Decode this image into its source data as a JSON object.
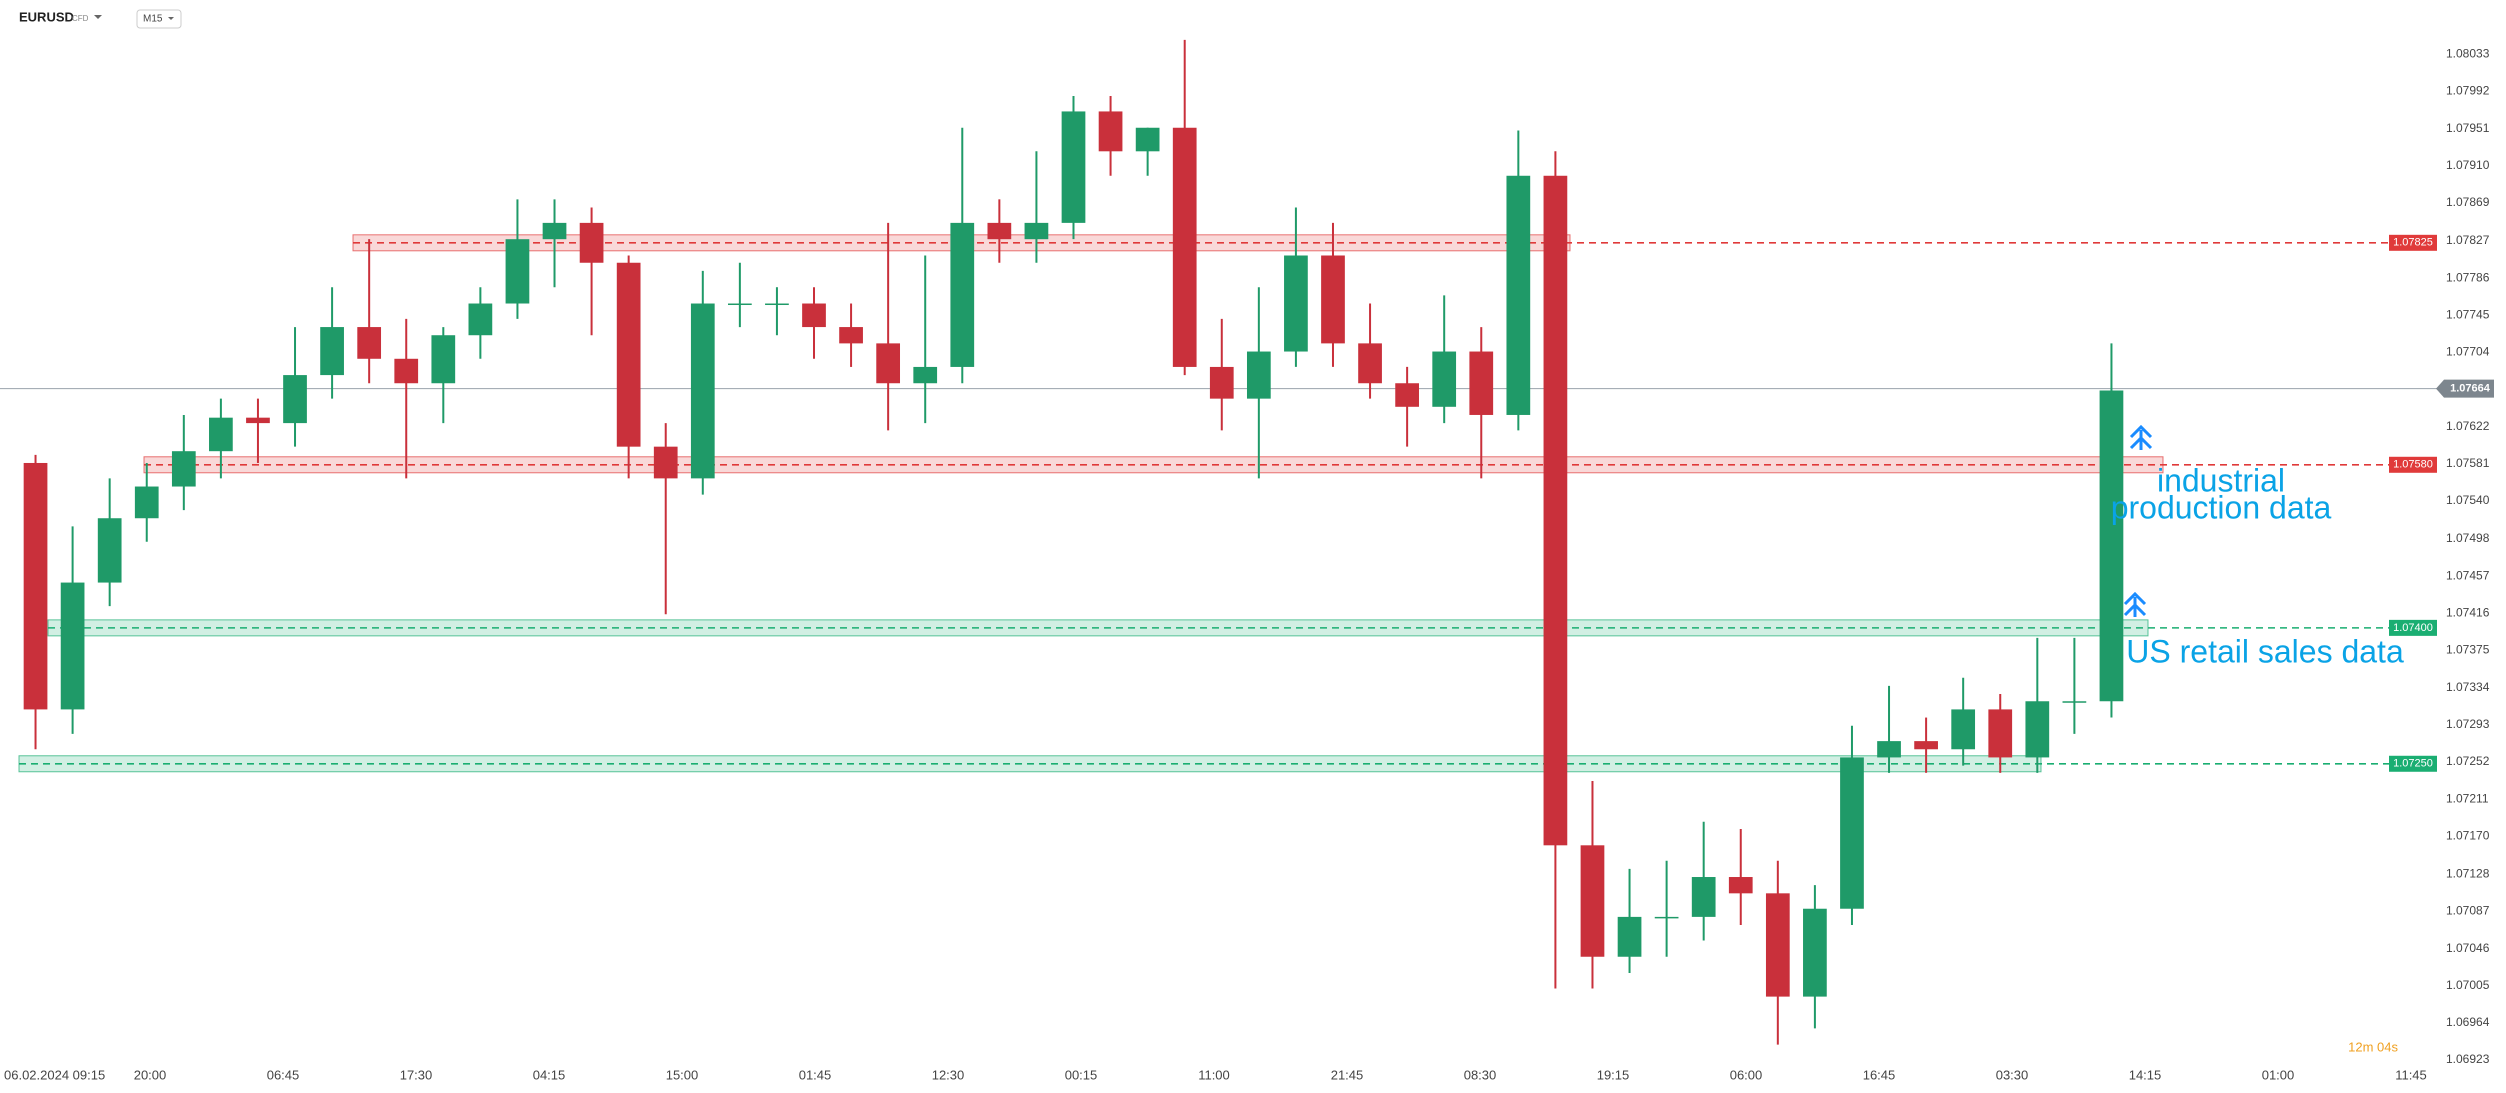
{
  "chart_data": {
    "type": "candlestick",
    "symbol": "EURUSD",
    "instrument": "CFD",
    "timeframe": "M15",
    "countdown": "12m 04s",
    "categories": [
      "06.02.2024 09:15",
      "20:00",
      "06:45",
      "17:30",
      "04:15",
      "15:00",
      "01:45",
      "12:30",
      "00:15",
      "11:00",
      "21:45",
      "08:30",
      "19:15",
      "06:00",
      "16:45",
      "03:30",
      "14:15",
      "01:00",
      "11:45"
    ],
    "up_color": "#1f9a68",
    "down_color": "#c9303b",
    "open": [
      1.07582,
      1.0731,
      1.0745,
      1.07521,
      1.07556,
      1.07595,
      1.07632,
      1.07626,
      1.07679,
      1.07732,
      1.07697,
      1.0767,
      1.07723,
      1.07758,
      1.07829,
      1.07847,
      1.07803,
      1.076,
      1.07565,
      1.07758,
      1.07758,
      1.07758,
      1.07732,
      1.07714,
      1.0767,
      1.07688,
      1.07847,
      1.07829,
      1.07847,
      1.0797,
      1.07926,
      1.07952,
      1.07688,
      1.07653,
      1.07705,
      1.07811,
      1.07714,
      1.0767,
      1.07644,
      1.07705,
      1.07635,
      1.07899,
      1.0716,
      1.07037,
      1.07081,
      1.07081,
      1.07125,
      1.07107,
      1.06993,
      1.0709,
      1.07257,
      1.07275,
      1.07266,
      1.0731,
      1.07257,
      1.07319,
      1.07319
    ],
    "high": [
      1.07591,
      1.07512,
      1.07565,
      1.07582,
      1.07635,
      1.07653,
      1.07653,
      1.07732,
      1.07776,
      1.07829,
      1.07741,
      1.07732,
      1.07776,
      1.07873,
      1.07873,
      1.07864,
      1.07811,
      1.07626,
      1.07794,
      1.07803,
      1.07776,
      1.07776,
      1.07758,
      1.07847,
      1.07811,
      1.07952,
      1.07873,
      1.07926,
      1.07987,
      1.07987,
      1.07952,
      1.08049,
      1.07741,
      1.07776,
      1.07864,
      1.07847,
      1.07758,
      1.07688,
      1.07767,
      1.07732,
      1.07949,
      1.07926,
      1.07231,
      1.07134,
      1.07143,
      1.07186,
      1.07178,
      1.07143,
      1.07116,
      1.07292,
      1.07336,
      1.07301,
      1.07345,
      1.07327,
      1.07389,
      1.07389,
      1.07714
    ],
    "low": [
      1.07266,
      1.07283,
      1.07424,
      1.07495,
      1.0753,
      1.07565,
      1.07582,
      1.076,
      1.07653,
      1.0767,
      1.07565,
      1.07626,
      1.07697,
      1.07741,
      1.07776,
      1.07723,
      1.07565,
      1.07415,
      1.07547,
      1.07732,
      1.07723,
      1.07697,
      1.07688,
      1.07618,
      1.07626,
      1.0767,
      1.07803,
      1.07803,
      1.07829,
      1.07899,
      1.07899,
      1.07679,
      1.07618,
      1.07565,
      1.07688,
      1.07688,
      1.07653,
      1.076,
      1.07626,
      1.07565,
      1.07618,
      1.07002,
      1.07002,
      1.07019,
      1.07037,
      1.07055,
      1.07072,
      1.0694,
      1.06958,
      1.07072,
      1.0724,
      1.0724,
      1.07248,
      1.0724,
      1.0724,
      1.07283,
      1.07301
    ],
    "close": [
      1.0731,
      1.0745,
      1.07521,
      1.07556,
      1.07595,
      1.07632,
      1.07626,
      1.07679,
      1.07732,
      1.07697,
      1.0767,
      1.07723,
      1.07758,
      1.07829,
      1.07847,
      1.07803,
      1.076,
      1.07565,
      1.07758,
      1.07758,
      1.07758,
      1.07732,
      1.07714,
      1.0767,
      1.07688,
      1.07847,
      1.07829,
      1.07847,
      1.0797,
      1.07926,
      1.07952,
      1.07688,
      1.07653,
      1.07705,
      1.07811,
      1.07714,
      1.0767,
      1.07644,
      1.07705,
      1.07635,
      1.07899,
      1.0716,
      1.07037,
      1.07081,
      1.07081,
      1.07125,
      1.07107,
      1.06993,
      1.0709,
      1.07257,
      1.07275,
      1.07266,
      1.0731,
      1.07257,
      1.07319,
      1.07319,
      1.07662
    ],
    "ylim": [
      1.06912,
      1.08093
    ],
    "yticks": [
      1.08033,
      1.07992,
      1.07951,
      {
        "value": 1.0791,
        "label": "1.07910"
      },
      1.07869,
      1.07827,
      1.07786,
      1.07745,
      1.07704,
      1.07622,
      1.07581,
      {
        "value": 1.0754,
        "label": "1.07540"
      },
      1.07498,
      1.07457,
      1.07416,
      1.07375,
      1.07334,
      1.07293,
      1.07252,
      1.07211,
      {
        "value": 1.0717,
        "label": "1.07170"
      },
      1.07128,
      1.07087,
      1.07046,
      1.07005,
      1.06964,
      1.06923
    ],
    "levels": [
      {
        "value": 1.07825,
        "color": "#e03a3a"
      },
      {
        "value": 1.0758,
        "label": "1.07580",
        "color": "#e03a3a"
      },
      {
        "value": 1.074,
        "label": "1.07400",
        "color": "#1aae72"
      },
      {
        "value": 1.0725,
        "label": "1.07250",
        "color": "#1aae72"
      }
    ],
    "current_price": 1.07664,
    "annotations": [
      [
        "industrial",
        "production data"
      ],
      [
        "US retail sales data"
      ]
    ]
  }
}
